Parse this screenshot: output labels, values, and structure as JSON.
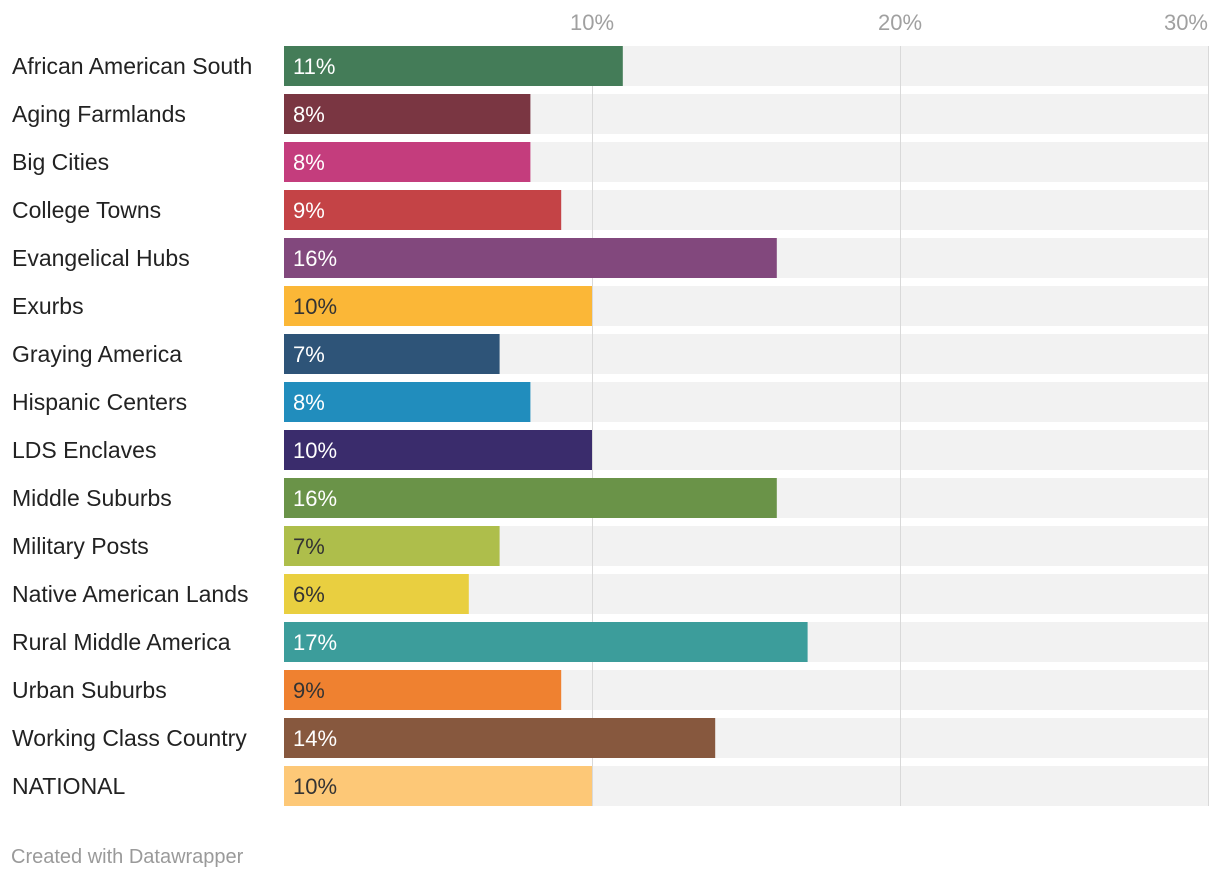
{
  "chart_data": {
    "type": "bar",
    "orientation": "horizontal",
    "title": "",
    "xlabel": "",
    "ylabel": "",
    "xlim": [
      0,
      30
    ],
    "unit": "%",
    "ticks": [
      {
        "value": 10,
        "label": "10%"
      },
      {
        "value": 20,
        "label": "20%"
      },
      {
        "value": 30,
        "label": "30%"
      }
    ],
    "grid": true,
    "categories": [
      "African American South",
      "Aging Farmlands",
      "Big Cities",
      "College Towns",
      "Evangelical Hubs",
      "Exurbs",
      "Graying America",
      "Hispanic Centers",
      "LDS Enclaves",
      "Middle Suburbs",
      "Military Posts",
      "Native American Lands",
      "Rural Middle America",
      "Urban Suburbs",
      "Working Class Country",
      "NATIONAL"
    ],
    "values": [
      11,
      8,
      8,
      9,
      16,
      10,
      7,
      8,
      10,
      16,
      7,
      6,
      17,
      9,
      14,
      10
    ],
    "value_labels": [
      "11%",
      "8%",
      "8%",
      "9%",
      "16%",
      "10%",
      "7%",
      "8%",
      "10%",
      "16%",
      "7%",
      "6%",
      "17%",
      "9%",
      "14%",
      "10%"
    ],
    "colors": [
      "#447c58",
      "#7a3642",
      "#c43d7d",
      "#c44346",
      "#82487d",
      "#fbb737",
      "#2e5478",
      "#218dbd",
      "#3a2c6c",
      "#6a9348",
      "#aebe4b",
      "#e9cf40",
      "#3c9d9b",
      "#ef8130",
      "#87583e",
      "#fdc877"
    ],
    "label_colors": [
      "#ffffff",
      "#ffffff",
      "#ffffff",
      "#ffffff",
      "#ffffff",
      "#333333",
      "#ffffff",
      "#ffffff",
      "#ffffff",
      "#ffffff",
      "#333333",
      "#333333",
      "#ffffff",
      "#333333",
      "#ffffff",
      "#333333"
    ],
    "track_color": "#f2f2f2",
    "grid_color": "#d9d9d9"
  },
  "footer": {
    "credit": "Created with Datawrapper"
  }
}
